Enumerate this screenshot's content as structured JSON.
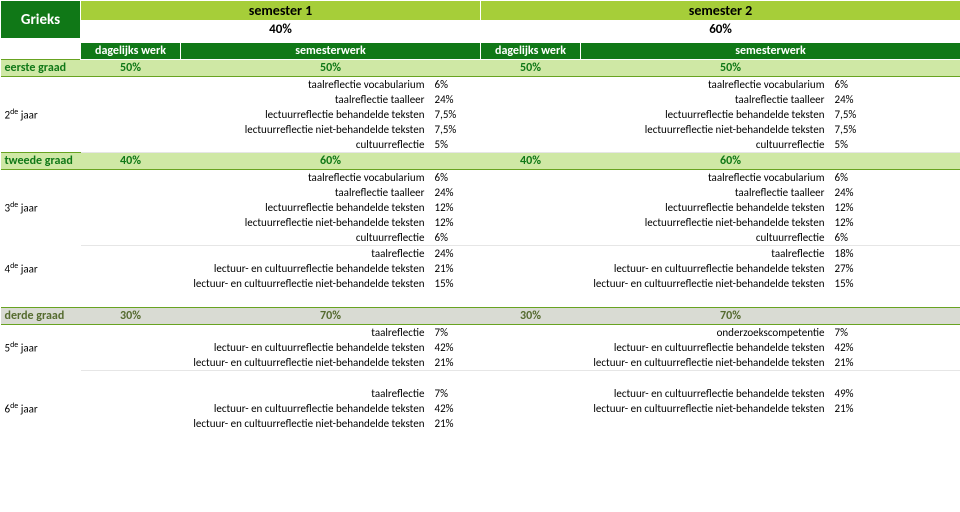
{
  "colors": {
    "dark_green": "#107817",
    "light_green": "#a6ce39",
    "pale_green": "#cfe8a5",
    "grey": "#d9dbd3"
  },
  "title": "Grieks",
  "sem1": {
    "label": "semester 1",
    "weight": "40%"
  },
  "sem2": {
    "label": "semester 2",
    "weight": "60%"
  },
  "subheads": {
    "dagelijks": "dagelijks werk",
    "semester": "semesterwerk"
  },
  "grades": {
    "g1": {
      "label": "eerste graad",
      "d1": "50%",
      "s1": "50%",
      "d2": "50%",
      "s2": "50%"
    },
    "g2": {
      "label": "tweede graad",
      "d1": "40%",
      "s1": "60%",
      "d2": "40%",
      "s2": "60%"
    },
    "g3": {
      "label": "derde graad",
      "d1": "30%",
      "s1": "70%",
      "d2": "30%",
      "s2": "70%"
    }
  },
  "years": {
    "y2": "2<sup>de</sup> jaar",
    "y3": "3<sup>de</sup> jaar",
    "y4": "4<sup>de</sup> jaar",
    "y5": "5<sup>de</sup> jaar",
    "y6": "6<sup>de</sup> jaar"
  },
  "lbl": {
    "tv": "taalreflectie vocabularium",
    "tt": "taalreflectie taalleer",
    "lb": "lectuurreflectie behandelde teksten",
    "ln": "lectuurreflectie niet-behandelde teksten",
    "cr": "cultuurreflectie",
    "tr": "taalreflectie",
    "lcb": "lectuur- en cultuurreflectie behandelde teksten",
    "lcn": "lectuur- en cultuurreflectie niet-behandelde teksten",
    "oc": "onderzoekscompetentie"
  },
  "y2s1": {
    "tv": "6%",
    "tt": "24%",
    "lb": "7,5%",
    "ln": "7,5%",
    "cr": "5%"
  },
  "y2s2": {
    "tv": "6%",
    "tt": "24%",
    "lb": "7,5%",
    "ln": "7,5%",
    "cr": "5%"
  },
  "y3s1": {
    "tv": "6%",
    "tt": "24%",
    "lb": "12%",
    "ln": "12%",
    "cr": "6%"
  },
  "y3s2": {
    "tv": "6%",
    "tt": "24%",
    "lb": "12%",
    "ln": "12%",
    "cr": "6%"
  },
  "y4s1": {
    "tr": "24%",
    "lcb": "21%",
    "lcn": "15%"
  },
  "y4s2": {
    "tr": "18%",
    "lcb": "27%",
    "lcn": "15%"
  },
  "y5s1": {
    "tr": "7%",
    "lcb": "42%",
    "lcn": "21%"
  },
  "y5s2": {
    "oc": "7%",
    "lcb": "42%",
    "lcn": "21%"
  },
  "y6s1": {
    "tr": "7%",
    "lcb": "42%",
    "lcn": "21%"
  },
  "y6s2": {
    "lcb": "49%",
    "lcn": "21%"
  }
}
